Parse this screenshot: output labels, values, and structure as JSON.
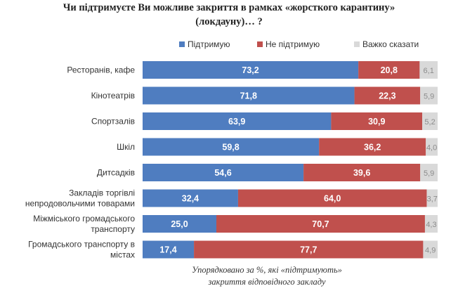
{
  "title_line1": "Чи підтримуєте Ви можливе закриття в рамках «жорсткого карантину»",
  "title_line2": "(локдауну)… ?",
  "note_line1": "Упорядковано за %, які «підтримують»",
  "note_line2": "закриття відповідного закладу",
  "colors": {
    "support": "#4f7dc0",
    "oppose": "#c0504d",
    "hard": "#d9d9d9"
  },
  "chart_data": {
    "type": "bar",
    "orientation": "horizontal",
    "stacked": true,
    "percent": true,
    "categories": [
      [
        "Ресторанів, кафе"
      ],
      [
        "Кінотеатрів"
      ],
      [
        "Спортзалів"
      ],
      [
        "Шкіл"
      ],
      [
        "Дитсадків"
      ],
      [
        "Закладів торгівлі",
        "непродовольчими товарами"
      ],
      [
        "Міжміського громадського",
        "транспорту"
      ],
      [
        "Громадського транспорту в",
        "містах"
      ]
    ],
    "series": [
      {
        "name": "Підтримую",
        "values": [
          73.2,
          71.8,
          63.9,
          59.8,
          54.6,
          32.4,
          25.0,
          17.4
        ],
        "labels": [
          "73,2",
          "71,8",
          "63,9",
          "59,8",
          "54,6",
          "32,4",
          "25,0",
          "17,4"
        ]
      },
      {
        "name": "Не підтримую",
        "values": [
          20.8,
          22.3,
          30.9,
          36.2,
          39.6,
          64.0,
          70.7,
          77.7
        ],
        "labels": [
          "20,8",
          "22,3",
          "30,9",
          "36,2",
          "39,6",
          "64,0",
          "70,7",
          "77,7"
        ]
      },
      {
        "name": "Важко сказати",
        "values": [
          6.1,
          5.9,
          5.2,
          4.0,
          5.9,
          3.7,
          4.3,
          4.9
        ],
        "labels": [
          "6,1",
          "5,9",
          "5,2",
          "4,0",
          "5,9",
          "3,7",
          "4,3",
          "4,9"
        ]
      }
    ],
    "legend_position": "top-right",
    "grid": false
  }
}
